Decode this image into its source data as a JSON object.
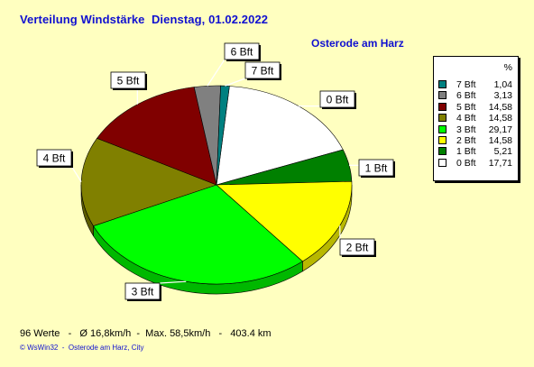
{
  "title": "Verteilung Windstärke  Dienstag, 01.02.2022",
  "location": "Osterode am Harz",
  "legend": {
    "header": "%",
    "items": [
      {
        "label": "7 Bft",
        "value": "1,04",
        "color": "#008080"
      },
      {
        "label": "6 Bft",
        "value": "3,13",
        "color": "#808080"
      },
      {
        "label": "5 Bft",
        "value": "14,58",
        "color": "#800000"
      },
      {
        "label": "4 Bft",
        "value": "14,58",
        "color": "#808000"
      },
      {
        "label": "3 Bft",
        "value": "29,17",
        "color": "#00FF00"
      },
      {
        "label": "2 Bft",
        "value": "14,58",
        "color": "#FFFF00"
      },
      {
        "label": "1 Bft",
        "value": "5,21",
        "color": "#008000"
      },
      {
        "label": "0 Bft",
        "value": "17,71",
        "color": "#FFFFFF"
      }
    ]
  },
  "stats": "96 Werte   -   Ø 16,8km/h  -  Max. 58,5km/h   -   403.4 km",
  "footer": "© WsWin32  -  Osterode am Harz, City",
  "chart_data": {
    "type": "pie",
    "title": "Verteilung Windstärke  Dienstag, 01.02.2022",
    "labels": [
      "0 Bft",
      "1 Bft",
      "2 Bft",
      "3 Bft",
      "4 Bft",
      "5 Bft",
      "6 Bft",
      "7 Bft"
    ],
    "values": [
      17.71,
      5.21,
      14.58,
      29.17,
      14.58,
      14.58,
      3.13,
      1.04
    ],
    "colors": [
      "#FFFFFF",
      "#008000",
      "#FFFF00",
      "#00FF00",
      "#808000",
      "#800000",
      "#808080",
      "#008080"
    ],
    "legend": "right"
  }
}
